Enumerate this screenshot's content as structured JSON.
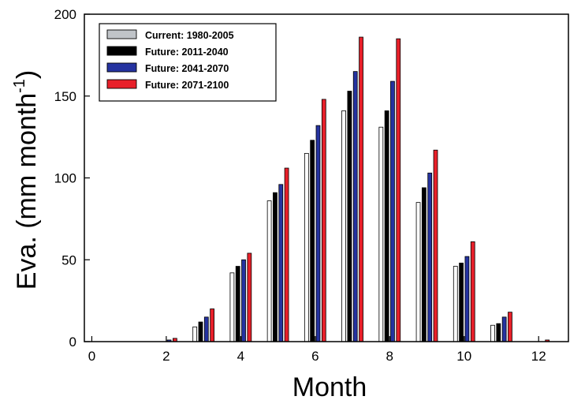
{
  "chart_data": {
    "type": "bar",
    "xlabel": "Month",
    "ylabel": "Eva. (mm month",
    "ylabel_superscript": "-1",
    "ylabel_suffix": ")",
    "xlim": [
      -0.2,
      12.8
    ],
    "ylim": [
      0,
      200
    ],
    "xticks": [
      0,
      2,
      4,
      6,
      8,
      10,
      12
    ],
    "yticks": [
      0,
      50,
      100,
      150,
      200
    ],
    "legend_position": "top-left",
    "grid": false,
    "x": [
      1,
      2,
      3,
      4,
      5,
      6,
      7,
      8,
      9,
      10,
      11,
      12
    ],
    "series": [
      {
        "name": "Current: 1980-2005",
        "color": "#ffffff",
        "values": [
          0,
          0,
          9,
          42,
          86,
          115,
          141,
          131,
          85,
          46,
          10,
          0
        ]
      },
      {
        "name": "Future: 2011-2040",
        "color": "#000000",
        "values": [
          0,
          0,
          12,
          46,
          91,
          123,
          153,
          141,
          94,
          48,
          11,
          0
        ]
      },
      {
        "name": "Future: 2041-2070",
        "color": "#2533a0",
        "values": [
          0,
          1,
          15,
          50,
          96,
          132,
          165,
          159,
          103,
          52,
          15,
          0
        ]
      },
      {
        "name": "Future: 2071-2100",
        "color": "#e8202a",
        "values": [
          0,
          2,
          20,
          54,
          106,
          148,
          186,
          185,
          117,
          61,
          18,
          1
        ]
      }
    ],
    "legend_swatch_colors": [
      "#c0c4c8",
      "#000000",
      "#2533a0",
      "#e8202a"
    ]
  }
}
